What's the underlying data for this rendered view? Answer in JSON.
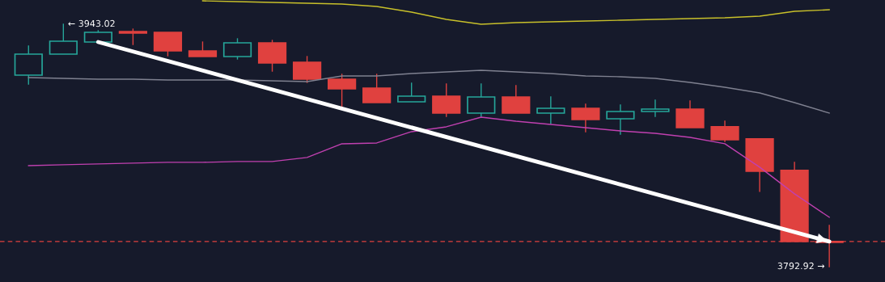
{
  "chart_data": {
    "type": "candlestick",
    "tick_labels": false,
    "categories": [
      null,
      null,
      null,
      null,
      null,
      null,
      null,
      null,
      null,
      null,
      null,
      null,
      null,
      null,
      null,
      null,
      null,
      null,
      null,
      null,
      null,
      null,
      null,
      null
    ],
    "ohlc": [
      [
        3911.5,
        3929.5,
        3906.0,
        3924.5
      ],
      [
        3924.5,
        3943.02,
        3924.0,
        3932.5
      ],
      [
        3932.0,
        3939.0,
        3931.5,
        3938.0
      ],
      [
        3938.5,
        3940.0,
        3930.5,
        3937.5
      ],
      [
        3938.0,
        3938.5,
        3923.5,
        3926.5
      ],
      [
        3926.5,
        3932.0,
        3922.5,
        3923.0
      ],
      [
        3923.0,
        3934.0,
        3921.5,
        3931.5
      ],
      [
        3931.5,
        3933.0,
        3914.0,
        3919.0
      ],
      [
        3919.5,
        3923.0,
        3907.0,
        3909.0
      ],
      [
        3909.0,
        3912.0,
        3891.5,
        3903.0
      ],
      [
        3903.5,
        3912.0,
        3894.5,
        3894.5
      ],
      [
        3895.0,
        3906.5,
        3894.5,
        3898.5
      ],
      [
        3898.5,
        3906.0,
        3886.0,
        3888.0
      ],
      [
        3888.0,
        3906.0,
        3886.0,
        3898.0
      ],
      [
        3898.0,
        3905.0,
        3888.0,
        3888.0
      ],
      [
        3888.0,
        3898.0,
        3881.5,
        3891.0
      ],
      [
        3891.0,
        3893.5,
        3876.5,
        3884.0
      ],
      [
        3884.5,
        3893.0,
        3875.0,
        3889.0
      ],
      [
        3889.0,
        3896.0,
        3886.0,
        3890.5
      ],
      [
        3890.5,
        3895.5,
        3879.0,
        3879.0
      ],
      [
        3879.5,
        3883.0,
        3870.5,
        3871.5
      ],
      [
        3872.0,
        3872.5,
        3839.5,
        3852.0
      ],
      [
        3852.5,
        3857.5,
        3808.0,
        3808.5
      ],
      [
        3808.5,
        3818.5,
        3792.92,
        3808.0
      ]
    ],
    "colors": [
      "#26a69a",
      "#26a69a",
      "#26a69a",
      "#e0413f",
      "#e0413f",
      "#e0413f",
      "#26a69a",
      "#e0413f",
      "#e0413f",
      "#e0413f",
      "#e0413f",
      "#26a69a",
      "#e0413f",
      "#26a69a",
      "#e0413f",
      "#26a69a",
      "#e0413f",
      "#26a69a",
      "#26a69a",
      "#e0413f",
      "#e0413f",
      "#e0413f",
      "#e0413f",
      "#e0413f"
    ],
    "series": [
      {
        "type": "line",
        "color": "#c8c02a",
        "values": [
          null,
          null,
          null,
          null,
          null,
          3957.5,
          3957.0,
          3956.5,
          3956.0,
          3955.5,
          3954.0,
          3950.5,
          3946.0,
          3943.0,
          3944.0,
          3944.5,
          3945.0,
          3945.5,
          3946.0,
          3946.5,
          3947.0,
          3948.0,
          3951.0,
          3952.0
        ]
      },
      {
        "type": "line",
        "color": "#7f8190",
        "values": [
          3910.0,
          3909.5,
          3909.0,
          3909.0,
          3908.5,
          3908.5,
          3908.5,
          3908.0,
          3907.5,
          3911.0,
          3911.0,
          3912.5,
          3913.5,
          3914.5,
          3913.5,
          3912.5,
          3911.0,
          3910.5,
          3909.5,
          3907.0,
          3904.0,
          3900.5,
          3894.5,
          3888.0
        ]
      },
      {
        "type": "line",
        "color": "#c040b0",
        "values": [
          3855.5,
          3856.0,
          3856.5,
          3857.0,
          3857.5,
          3857.5,
          3858.0,
          3858.0,
          3860.5,
          3869.0,
          3869.5,
          3876.5,
          3879.5,
          3885.5,
          3883.0,
          3881.0,
          3879.0,
          3877.0,
          3875.5,
          3873.0,
          3869.0,
          3854.5,
          3838.0,
          3823.5
        ]
      },
      {
        "type": "line",
        "color": "#ffffff",
        "values": [
          null,
          null,
          3932.0,
          null,
          null,
          null,
          null,
          null,
          null,
          null,
          null,
          null,
          null,
          null,
          null,
          null,
          null,
          null,
          null,
          null,
          null,
          null,
          null,
          3808.5
        ]
      }
    ],
    "ref_lines": [
      {
        "axis": "y",
        "value": 3808.5,
        "color": "#e0413f",
        "line_style": "dashed"
      }
    ],
    "annotations": [
      "← 3943.02",
      "3792.92 →"
    ]
  }
}
